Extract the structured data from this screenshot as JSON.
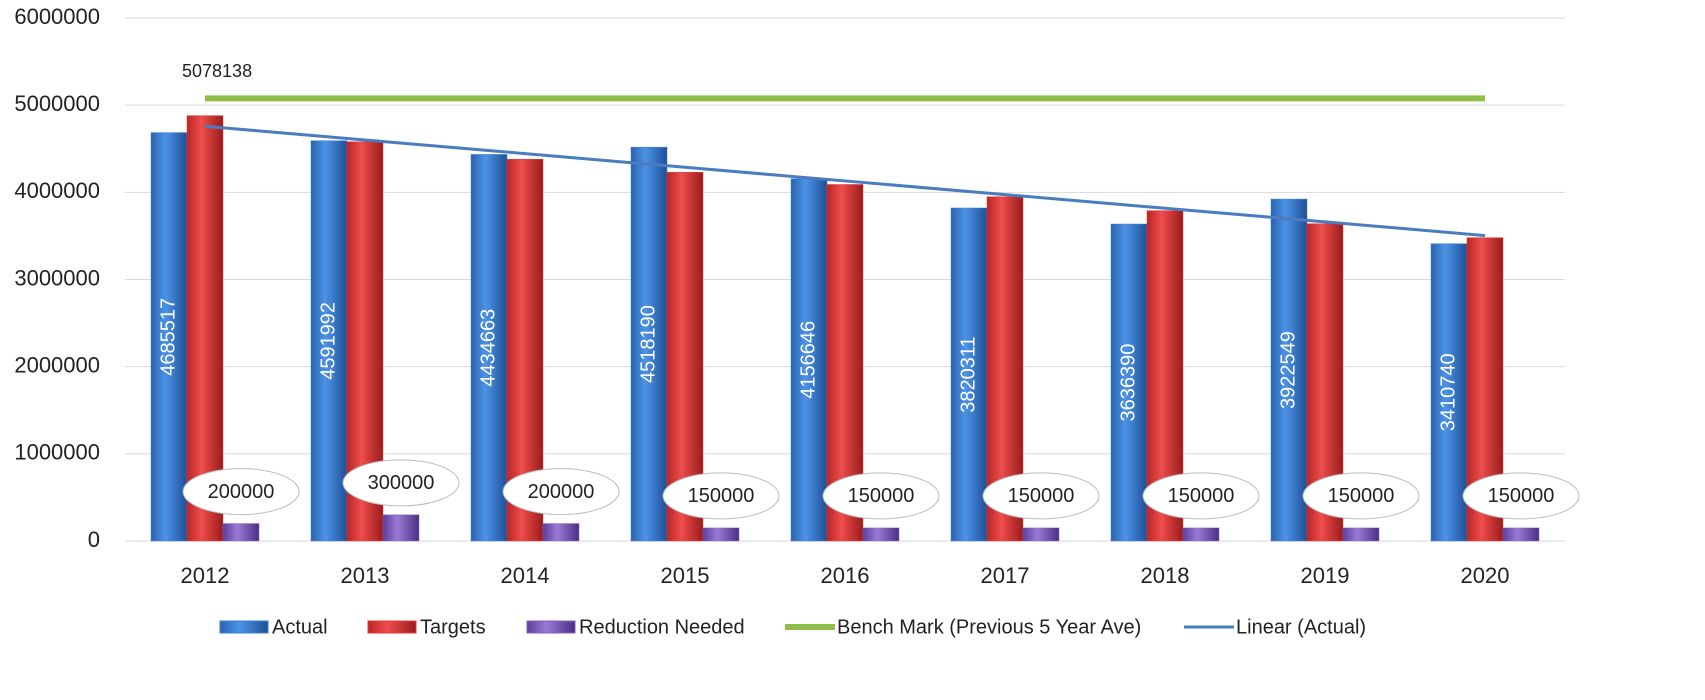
{
  "chart_data": {
    "type": "bar",
    "categories": [
      "2012",
      "2013",
      "2014",
      "2015",
      "2016",
      "2017",
      "2018",
      "2019",
      "2020"
    ],
    "series": [
      {
        "name": "Actual",
        "color": "#3b7fd4",
        "values": [
          4685517,
          4591992,
          4434663,
          4518190,
          4156646,
          3820311,
          3636390,
          3922549,
          3410740
        ]
      },
      {
        "name": "Targets",
        "color": "#e23b3b",
        "values": [
          4880000,
          4580000,
          4380000,
          4230000,
          4090000,
          3950000,
          3790000,
          3640000,
          3480000
        ]
      },
      {
        "name": "Reduction Needed",
        "color": "#8060c0",
        "values": [
          200000,
          300000,
          200000,
          150000,
          150000,
          150000,
          150000,
          150000,
          150000
        ]
      },
      {
        "name": "Bench Mark (Previous 5 Year Ave)",
        "color": "#8fbf4a",
        "kind": "line",
        "values": [
          5078138,
          5078138,
          5078138,
          5078138,
          5078138,
          5078138,
          5078138,
          5078138,
          5078138
        ]
      },
      {
        "name": "Linear (Actual)",
        "color": "#4a7cc0",
        "kind": "line",
        "values": [
          4757570,
          4600872,
          4444174,
          4287476,
          4130778,
          3974080,
          3817382,
          3660684,
          3503986
        ]
      }
    ],
    "ylim": [
      0,
      6000000
    ],
    "yticks": [
      0,
      1000000,
      2000000,
      3000000,
      4000000,
      5000000,
      6000000
    ],
    "grid": true
  }
}
